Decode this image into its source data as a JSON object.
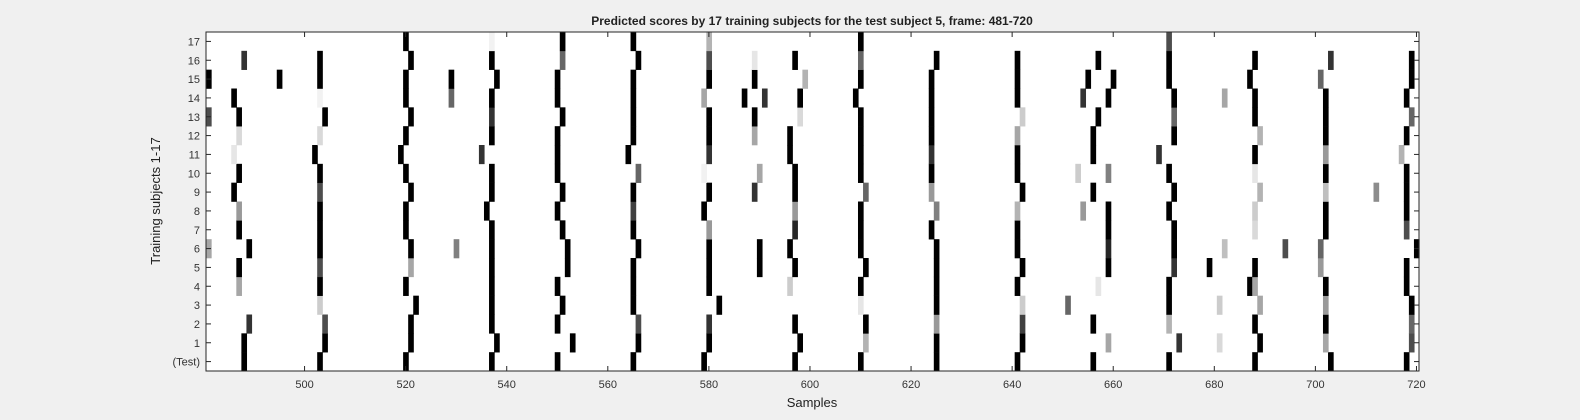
{
  "chart_data": {
    "type": "heatmap",
    "title": "Predicted scores by 17 training subjects for the test subject 5, frame: 481-720",
    "xlabel": "Samples",
    "ylabel": "Training subjects 1-17",
    "xlim": [
      481,
      720
    ],
    "xticks": [
      500,
      520,
      540,
      560,
      580,
      600,
      620,
      640,
      660,
      680,
      700,
      720
    ],
    "yticklabels": [
      "(Test)",
      "1",
      "2",
      "3",
      "4",
      "5",
      "6",
      "7",
      "8",
      "9",
      "10",
      "11",
      "12",
      "13",
      "14",
      "15",
      "16",
      "17"
    ],
    "value_range": [
      0,
      1
    ],
    "colormap": "white-to-black (higher score = darker)",
    "rows": [
      {
        "label": "(Test)",
        "marks": [
          [
            488,
            1
          ],
          [
            503,
            1
          ],
          [
            520,
            1
          ],
          [
            537,
            1
          ],
          [
            550,
            1
          ],
          [
            565,
            1
          ],
          [
            579,
            1
          ],
          [
            597,
            1
          ],
          [
            610,
            1
          ],
          [
            625,
            1
          ],
          [
            641,
            1
          ],
          [
            656,
            1
          ],
          [
            671,
            1
          ],
          [
            688,
            1
          ],
          [
            703,
            1
          ],
          [
            718,
            1
          ]
        ]
      },
      {
        "label": "1",
        "marks": [
          [
            488,
            1
          ],
          [
            504,
            1
          ],
          [
            521,
            1
          ],
          [
            538,
            1
          ],
          [
            553,
            1
          ],
          [
            566,
            1
          ],
          [
            580,
            1
          ],
          [
            598,
            1
          ],
          [
            611,
            0.3
          ],
          [
            625,
            1
          ],
          [
            642,
            1
          ],
          [
            659,
            0.35
          ],
          [
            673,
            0.8
          ],
          [
            681,
            0.15
          ],
          [
            689,
            1
          ],
          [
            702,
            0.35
          ],
          [
            719,
            0.7
          ]
        ]
      },
      {
        "label": "2",
        "marks": [
          [
            489,
            0.8
          ],
          [
            504,
            0.7
          ],
          [
            521,
            1
          ],
          [
            537,
            1
          ],
          [
            550,
            1
          ],
          [
            566,
            0.7
          ],
          [
            580,
            0.8
          ],
          [
            597,
            1
          ],
          [
            611,
            1
          ],
          [
            625,
            0.4
          ],
          [
            642,
            0.75
          ],
          [
            656,
            1
          ],
          [
            671,
            0.3
          ],
          [
            688,
            1
          ],
          [
            702,
            1
          ],
          [
            719,
            0.6
          ]
        ]
      },
      {
        "label": "3",
        "marks": [
          [
            503,
            0.2
          ],
          [
            522,
            1
          ],
          [
            537,
            1
          ],
          [
            551,
            1
          ],
          [
            565,
            1
          ],
          [
            582,
            1
          ],
          [
            610,
            0.1
          ],
          [
            625,
            1
          ],
          [
            642,
            0.2
          ],
          [
            651,
            0.6
          ],
          [
            671,
            1
          ],
          [
            681,
            0.2
          ],
          [
            689,
            0.35
          ],
          [
            702,
            0.4
          ],
          [
            719,
            1
          ]
        ]
      },
      {
        "label": "4",
        "marks": [
          [
            487,
            0.35
          ],
          [
            503,
            1
          ],
          [
            520,
            1
          ],
          [
            537,
            1
          ],
          [
            550,
            1
          ],
          [
            565,
            1
          ],
          [
            580,
            1
          ],
          [
            596,
            0.2
          ],
          [
            610,
            1
          ],
          [
            625,
            1
          ],
          [
            641,
            1
          ],
          [
            657,
            0.1
          ],
          [
            671,
            1
          ],
          [
            687,
            1
          ],
          [
            688,
            0.35
          ],
          [
            702,
            1
          ],
          [
            718,
            1
          ]
        ]
      },
      {
        "label": "5",
        "marks": [
          [
            487,
            1
          ],
          [
            503,
            0.7
          ],
          [
            521,
            0.35
          ],
          [
            537,
            1
          ],
          [
            552,
            1
          ],
          [
            565,
            1
          ],
          [
            580,
            1
          ],
          [
            590,
            1
          ],
          [
            597,
            1
          ],
          [
            611,
            1
          ],
          [
            625,
            1
          ],
          [
            642,
            1
          ],
          [
            659,
            1
          ],
          [
            672,
            0.8
          ],
          [
            679,
            1
          ],
          [
            688,
            1
          ],
          [
            701,
            0.4
          ],
          [
            718,
            1
          ]
        ]
      },
      {
        "label": "6",
        "marks": [
          [
            481,
            0.35
          ],
          [
            489,
            1
          ],
          [
            503,
            1
          ],
          [
            521,
            1
          ],
          [
            530,
            0.5
          ],
          [
            537,
            1
          ],
          [
            552,
            1
          ],
          [
            566,
            1
          ],
          [
            580,
            1
          ],
          [
            590,
            1
          ],
          [
            596,
            1
          ],
          [
            610,
            1
          ],
          [
            625,
            1
          ],
          [
            641,
            1
          ],
          [
            659,
            0.85
          ],
          [
            672,
            1
          ],
          [
            682,
            0.25
          ],
          [
            694,
            0.7
          ],
          [
            701,
            0.6
          ],
          [
            720,
            1
          ]
        ]
      },
      {
        "label": "7",
        "marks": [
          [
            487,
            1
          ],
          [
            503,
            1
          ],
          [
            520,
            1
          ],
          [
            537,
            1
          ],
          [
            551,
            1
          ],
          [
            565,
            1
          ],
          [
            580,
            0.4
          ],
          [
            597,
            0.85
          ],
          [
            610,
            1
          ],
          [
            624,
            1
          ],
          [
            641,
            1
          ],
          [
            659,
            1
          ],
          [
            672,
            1
          ],
          [
            688,
            0.15
          ],
          [
            702,
            1
          ],
          [
            718,
            0.7
          ]
        ]
      },
      {
        "label": "8",
        "marks": [
          [
            487,
            0.4
          ],
          [
            503,
            1
          ],
          [
            520,
            1
          ],
          [
            536,
            1
          ],
          [
            550,
            1
          ],
          [
            565,
            0.75
          ],
          [
            579,
            1
          ],
          [
            597,
            0.4
          ],
          [
            610,
            1
          ],
          [
            625,
            0.5
          ],
          [
            641,
            0.3
          ],
          [
            654,
            0.4
          ],
          [
            659,
            1
          ],
          [
            671,
            1
          ],
          [
            688,
            0.2
          ],
          [
            702,
            1
          ],
          [
            718,
            1
          ]
        ]
      },
      {
        "label": "9",
        "marks": [
          [
            486,
            1
          ],
          [
            503,
            0.7
          ],
          [
            521,
            1
          ],
          [
            537,
            1
          ],
          [
            551,
            1
          ],
          [
            565,
            1
          ],
          [
            580,
            1
          ],
          [
            589,
            0.8
          ],
          [
            597,
            1
          ],
          [
            611,
            0.6
          ],
          [
            624,
            0.4
          ],
          [
            642,
            1
          ],
          [
            656,
            1
          ],
          [
            672,
            1
          ],
          [
            689,
            0.3
          ],
          [
            702,
            0.25
          ],
          [
            712,
            0.45
          ],
          [
            718,
            1
          ]
        ]
      },
      {
        "label": "10",
        "marks": [
          [
            487,
            1
          ],
          [
            503,
            1
          ],
          [
            520,
            1
          ],
          [
            537,
            1
          ],
          [
            550,
            1
          ],
          [
            566,
            0.6
          ],
          [
            579,
            0.05
          ],
          [
            590,
            0.35
          ],
          [
            597,
            1
          ],
          [
            610,
            1
          ],
          [
            624,
            1
          ],
          [
            641,
            1
          ],
          [
            653,
            0.2
          ],
          [
            659,
            0.5
          ],
          [
            671,
            1
          ],
          [
            688,
            0.1
          ],
          [
            702,
            1
          ],
          [
            718,
            1
          ]
        ]
      },
      {
        "label": "11",
        "marks": [
          [
            486,
            0.1
          ],
          [
            502,
            1
          ],
          [
            519,
            1
          ],
          [
            535,
            0.8
          ],
          [
            550,
            1
          ],
          [
            564,
            1
          ],
          [
            580,
            0.8
          ],
          [
            596,
            1
          ],
          [
            610,
            1
          ],
          [
            624,
            0.8
          ],
          [
            641,
            1
          ],
          [
            656,
            1
          ],
          [
            669,
            0.8
          ],
          [
            688,
            1
          ],
          [
            702,
            0.4
          ],
          [
            717,
            0.3
          ]
        ]
      },
      {
        "label": "12",
        "marks": [
          [
            487,
            0.15
          ],
          [
            503,
            0.15
          ],
          [
            520,
            1
          ],
          [
            537,
            1
          ],
          [
            550,
            1
          ],
          [
            565,
            1
          ],
          [
            580,
            1
          ],
          [
            589,
            0.35
          ],
          [
            596,
            1
          ],
          [
            610,
            1
          ],
          [
            624,
            1
          ],
          [
            641,
            0.35
          ],
          [
            656,
            1
          ],
          [
            672,
            1
          ],
          [
            689,
            0.3
          ],
          [
            702,
            1
          ],
          [
            718,
            1
          ]
        ]
      },
      {
        "label": "13",
        "marks": [
          [
            481,
            0.7
          ],
          [
            487,
            1
          ],
          [
            504,
            1
          ],
          [
            521,
            1
          ],
          [
            537,
            0.8
          ],
          [
            551,
            1
          ],
          [
            565,
            1
          ],
          [
            580,
            1
          ],
          [
            589,
            1
          ],
          [
            598,
            0.15
          ],
          [
            610,
            1
          ],
          [
            624,
            1
          ],
          [
            642,
            0.2
          ],
          [
            657,
            1
          ],
          [
            672,
            0.6
          ],
          [
            688,
            1
          ],
          [
            702,
            1
          ],
          [
            719,
            0.6
          ]
        ]
      },
      {
        "label": "14",
        "marks": [
          [
            486,
            1
          ],
          [
            503,
            0.05
          ],
          [
            520,
            1
          ],
          [
            529,
            0.6
          ],
          [
            537,
            1
          ],
          [
            550,
            1
          ],
          [
            565,
            1
          ],
          [
            579,
            0.35
          ],
          [
            587,
            1
          ],
          [
            591,
            0.8
          ],
          [
            598,
            1
          ],
          [
            609,
            1
          ],
          [
            624,
            1
          ],
          [
            641,
            1
          ],
          [
            654,
            0.8
          ],
          [
            659,
            1
          ],
          [
            672,
            1
          ],
          [
            682,
            0.35
          ],
          [
            688,
            1
          ],
          [
            702,
            1
          ],
          [
            718,
            1
          ]
        ]
      },
      {
        "label": "15",
        "marks": [
          [
            481,
            1
          ],
          [
            495,
            1
          ],
          [
            503,
            1
          ],
          [
            520,
            1
          ],
          [
            529,
            1
          ],
          [
            538,
            1
          ],
          [
            550,
            1
          ],
          [
            565,
            1
          ],
          [
            580,
            1
          ],
          [
            589,
            1
          ],
          [
            599,
            0.3
          ],
          [
            610,
            1
          ],
          [
            624,
            1
          ],
          [
            641,
            1
          ],
          [
            655,
            1
          ],
          [
            660,
            1
          ],
          [
            671,
            1
          ],
          [
            687,
            1
          ],
          [
            701,
            0.6
          ],
          [
            719,
            1
          ]
        ]
      },
      {
        "label": "16",
        "marks": [
          [
            488,
            0.8
          ],
          [
            503,
            1
          ],
          [
            521,
            1
          ],
          [
            537,
            1
          ],
          [
            551,
            0.6
          ],
          [
            566,
            1
          ],
          [
            580,
            0.7
          ],
          [
            589,
            0.1
          ],
          [
            597,
            1
          ],
          [
            610,
            0.6
          ],
          [
            625,
            1
          ],
          [
            641,
            1
          ],
          [
            657,
            1
          ],
          [
            671,
            1
          ],
          [
            688,
            1
          ],
          [
            703,
            0.8
          ],
          [
            719,
            1
          ]
        ]
      },
      {
        "label": "17",
        "marks": [
          [
            520,
            1
          ],
          [
            537,
            0.05
          ],
          [
            551,
            1
          ],
          [
            565,
            1
          ],
          [
            580,
            0.3
          ],
          [
            610,
            1
          ],
          [
            671,
            0.7
          ]
        ]
      }
    ]
  }
}
